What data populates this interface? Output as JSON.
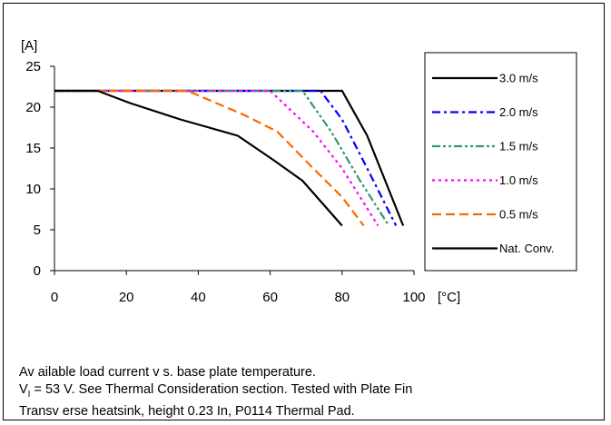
{
  "chart_data": {
    "type": "line",
    "ylabel": "[A]",
    "xlabel": "[°C]",
    "xlim": [
      0,
      100
    ],
    "ylim": [
      0,
      25
    ],
    "xticks": [
      0,
      20,
      40,
      60,
      80,
      100
    ],
    "yticks": [
      0,
      5,
      10,
      15,
      20,
      25
    ],
    "grid": false,
    "legend_position": "right",
    "series": [
      {
        "name": "3.0 m/s",
        "color": "#000000",
        "dash": "solid",
        "x": [
          0,
          80,
          87,
          97
        ],
        "y": [
          22,
          22,
          16.5,
          5.5
        ]
      },
      {
        "name": "2.0 m/s",
        "color": "#0000ff",
        "dash": "dashdot",
        "x": [
          0,
          74,
          80,
          87,
          95
        ],
        "y": [
          22,
          22,
          18.5,
          12.5,
          5.5
        ]
      },
      {
        "name": "1.5 m/s",
        "color": "#339966",
        "dash": "dashdotdot",
        "x": [
          0,
          69,
          77,
          85,
          93
        ],
        "y": [
          22,
          22,
          17,
          11,
          5.5
        ]
      },
      {
        "name": "1.0 m/s",
        "color": "#ff00ff",
        "dash": "dot",
        "x": [
          0,
          60,
          72,
          80,
          90
        ],
        "y": [
          22,
          22,
          17,
          12.5,
          5.5
        ]
      },
      {
        "name": "0.5 m/s",
        "color": "#ff6600",
        "dash": "dash",
        "x": [
          0,
          37,
          45,
          53,
          62,
          72,
          80,
          86
        ],
        "y": [
          22,
          22,
          20.5,
          19,
          17,
          12.5,
          9,
          5.5
        ]
      },
      {
        "name": "Nat. Conv.",
        "color": "#000000",
        "dash": "solid",
        "x": [
          0,
          12,
          21,
          35,
          51,
          61,
          69,
          80
        ],
        "y": [
          22,
          22,
          20.5,
          18.5,
          16.5,
          13.5,
          11,
          5.5
        ]
      }
    ]
  },
  "caption": {
    "line1": "Av ailable load current v s. base plate temperature.",
    "line2_v": "V",
    "line2_sub": "I",
    "line2_rest": " = 53 V. See Thermal Consideration section. Tested with Plate Fin",
    "line3": "Transv erse heatsink, height 0.23 In, P0114 Thermal Pad."
  }
}
